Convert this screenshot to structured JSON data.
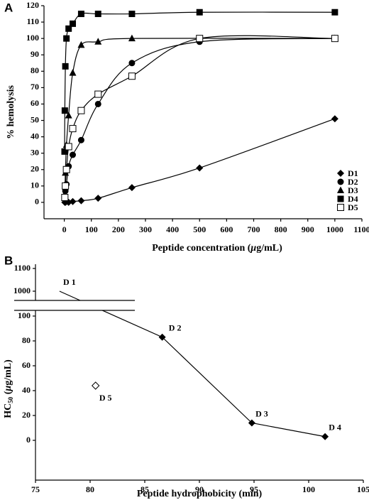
{
  "chart_data": [
    {
      "type": "scatter",
      "panel": "A",
      "y_title": "% hemolysis",
      "x_title": {
        "before": "Peptide concentration (",
        "unit_italic": "μ",
        "after": "g/mL)"
      },
      "xlim": [
        -75,
        1100
      ],
      "xticks": [
        0,
        100,
        200,
        300,
        400,
        500,
        600,
        700,
        800,
        900,
        1000,
        1100
      ],
      "ylim": [
        -10,
        120
      ],
      "yticks": [
        0,
        10,
        20,
        30,
        40,
        50,
        60,
        70,
        80,
        90,
        100,
        110,
        120
      ],
      "series": [
        {
          "name": "D1",
          "marker": "diamond",
          "color": "#000",
          "x": [
            2,
            4,
            8,
            16,
            31.25,
            62.5,
            125,
            250,
            500,
            1000
          ],
          "values": [
            0,
            0,
            0.5,
            0,
            0.5,
            1,
            2.5,
            9,
            21,
            51
          ]
        },
        {
          "name": "D2",
          "marker": "circle",
          "color": "#000",
          "x": [
            2,
            4,
            8,
            16,
            31.25,
            62.5,
            125,
            250,
            500,
            1000
          ],
          "values": [
            2,
            7,
            11,
            22,
            29,
            38,
            60,
            85,
            98,
            100
          ]
        },
        {
          "name": "D3",
          "marker": "triangle",
          "color": "#000",
          "x": [
            2,
            4,
            8,
            16,
            31.25,
            62.5,
            125,
            250,
            1000
          ],
          "values": [
            5,
            18,
            35,
            53,
            79,
            96,
            98,
            100,
            100
          ]
        },
        {
          "name": "D4",
          "marker": "square",
          "color": "#000",
          "x": [
            1,
            2,
            4,
            8,
            16,
            31.25,
            62.5,
            125,
            250,
            500,
            1000
          ],
          "values": [
            31,
            56,
            83,
            100,
            106,
            109,
            115,
            115,
            115,
            116,
            116
          ]
        },
        {
          "name": "D5",
          "marker": "open-square",
          "color": "#000",
          "x": [
            2,
            4,
            8,
            16,
            31.25,
            62.5,
            125,
            250,
            500,
            1000
          ],
          "values": [
            3,
            10,
            20,
            34,
            45,
            56,
            66,
            77,
            100,
            100
          ]
        }
      ]
    },
    {
      "type": "broken-line",
      "panel": "B",
      "y_title": {
        "before": "HC",
        "sub": "50",
        "middle": " (",
        "unit_italic": "μ",
        "after": "g/mL)"
      },
      "x_title": "Peptide hydrophobicity (min)",
      "xlim": [
        75,
        105
      ],
      "xticks": [
        75,
        80,
        85,
        90,
        95,
        100,
        105
      ],
      "ylim": [
        -32,
        1100
      ],
      "ybreak": [
        100,
        1000
      ],
      "yticks": [
        0,
        20,
        40,
        60,
        80,
        100,
        1000,
        1100
      ],
      "x": [
        77.2,
        86.6,
        94.8,
        101.5,
        80.5
      ],
      "values": [
        1000,
        83,
        14,
        3,
        44
      ],
      "point_labels": [
        "D 1",
        "D 2",
        "D 3",
        "D 4",
        "D 5"
      ],
      "markers": [
        "none",
        "filled",
        "filled",
        "filled",
        "open"
      ],
      "connected": [
        true,
        true,
        true,
        true,
        false
      ]
    }
  ]
}
